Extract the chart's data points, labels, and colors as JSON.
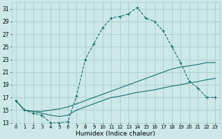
{
  "xlabel": "Humidex (Indice chaleur)",
  "bg_color": "#cce8e8",
  "grid_color": "#aacccc",
  "line_color": "#1a7070",
  "xlim": [
    -0.5,
    23.5
  ],
  "ylim": [
    13,
    32
  ],
  "xticks": [
    0,
    1,
    2,
    3,
    4,
    5,
    6,
    7,
    8,
    9,
    10,
    11,
    12,
    13,
    14,
    15,
    16,
    17,
    18,
    19,
    20,
    21,
    22,
    23
  ],
  "yticks": [
    13,
    15,
    17,
    19,
    21,
    23,
    25,
    27,
    29,
    31
  ],
  "series1_x": [
    0,
    1,
    2,
    3,
    4,
    5,
    6,
    7,
    8,
    9,
    10,
    11,
    12,
    13,
    14,
    15,
    16,
    17,
    18,
    19,
    20,
    21,
    22,
    23
  ],
  "series1_y": [
    16.5,
    15.0,
    14.5,
    14.2,
    13.0,
    13.0,
    13.2,
    17.2,
    23.0,
    25.5,
    28.0,
    29.5,
    29.8,
    30.2,
    31.2,
    29.5,
    29.0,
    27.5,
    25.0,
    22.5,
    19.5,
    18.5,
    17.0,
    17.0
  ],
  "series2_x": [
    0,
    1,
    2,
    3,
    4,
    5,
    6,
    7,
    8,
    9,
    10,
    11,
    12,
    13,
    14,
    15,
    16,
    17,
    18,
    19,
    20,
    21,
    22,
    23
  ],
  "series2_y": [
    16.5,
    15.0,
    14.8,
    14.8,
    15.0,
    15.2,
    15.5,
    16.0,
    16.5,
    17.0,
    17.5,
    18.0,
    18.5,
    19.0,
    19.5,
    20.0,
    20.5,
    21.0,
    21.5,
    21.8,
    22.0,
    22.2,
    22.5,
    22.5
  ],
  "series3_x": [
    0,
    1,
    2,
    3,
    4,
    5,
    6,
    7,
    8,
    9,
    10,
    11,
    12,
    13,
    14,
    15,
    16,
    17,
    18,
    19,
    20,
    21,
    22,
    23
  ],
  "series3_y": [
    16.5,
    15.0,
    14.8,
    14.5,
    14.2,
    14.0,
    14.2,
    15.0,
    15.5,
    16.0,
    16.5,
    17.0,
    17.2,
    17.5,
    17.8,
    18.0,
    18.2,
    18.5,
    18.8,
    19.0,
    19.3,
    19.5,
    19.8,
    20.0
  ],
  "xtick_fontsize": 5.0,
  "ytick_fontsize": 5.5,
  "xlabel_fontsize": 6.5
}
